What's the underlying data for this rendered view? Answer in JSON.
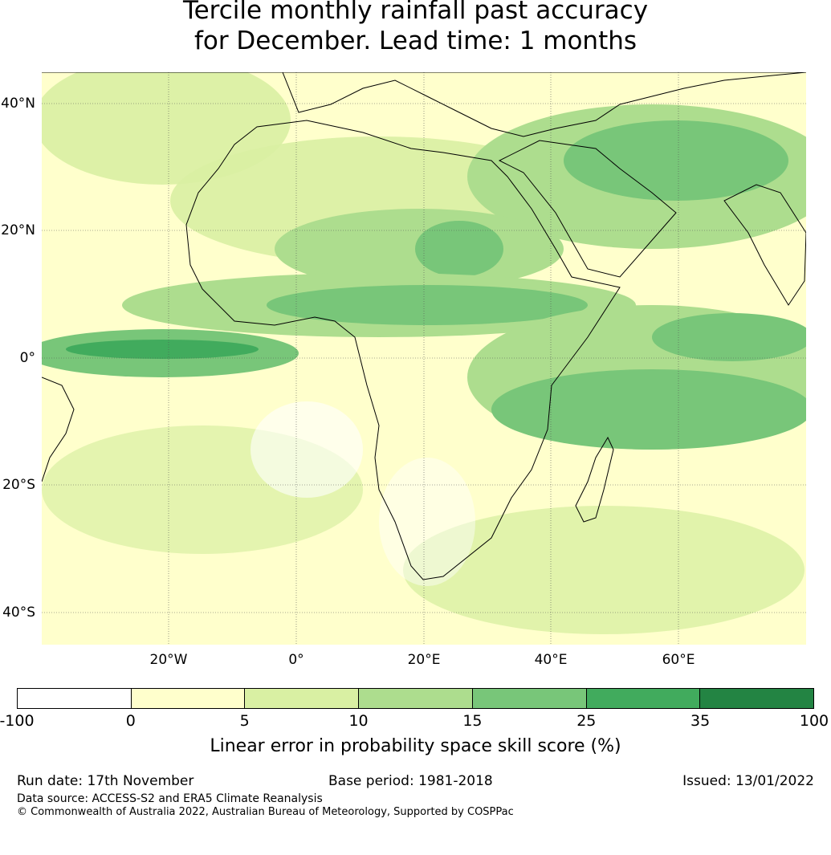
{
  "title_line1": "Tercile monthly rainfall past accuracy",
  "title_line2": "for December. Lead time: 1 months",
  "lat_ticks": [
    "40°N",
    "20°N",
    "0°",
    "20°S",
    "40°S"
  ],
  "lon_ticks": [
    "20°W",
    "0°",
    "20°E",
    "40°E",
    "60°E"
  ],
  "colorbar": {
    "label": "Linear error in probability space skill score (%)",
    "ticks": [
      "-100",
      "0",
      "5",
      "10",
      "15",
      "25",
      "35",
      "100"
    ],
    "colors": [
      "#ffffff",
      "#ffffcc",
      "#d9f0a3",
      "#addd8e",
      "#78c679",
      "#41ab5d",
      "#238443"
    ]
  },
  "footer": {
    "run_date": "Run date: 17th November",
    "base_period": "Base period: 1981-2018",
    "issued": "Issued: 13/01/2022",
    "data_source": "Data source: ACCESS-S2 and ERA5 Climate Reanalysis",
    "copyright": "© Commonwealth of Australia 2022, Australian Bureau of Meteorology, Supported by COSPPac"
  }
}
